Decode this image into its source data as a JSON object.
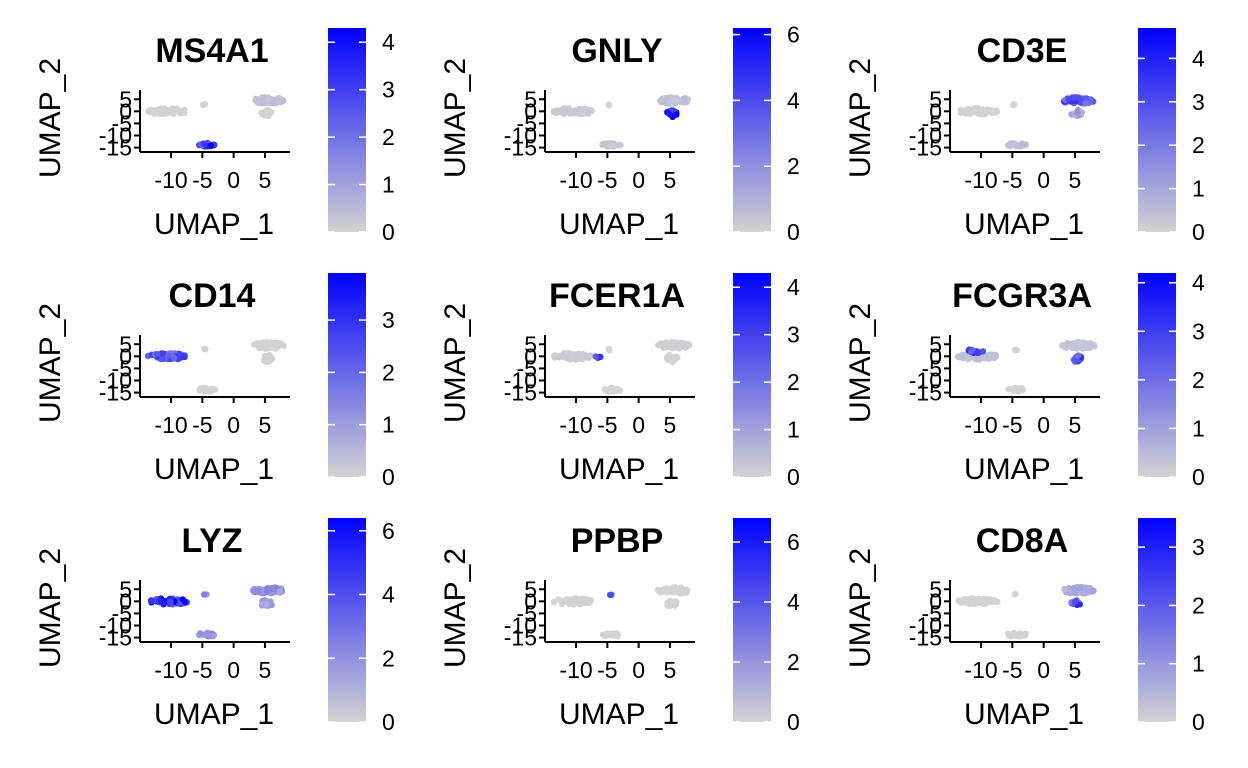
{
  "colors": {
    "low": "#D3D3D3",
    "high": "#0000FF",
    "axis": "#000000",
    "background": "#FFFFFF"
  },
  "chart_data": [
    {
      "type": "scatter",
      "title": "MS4A1",
      "xlabel": "UMAP_1",
      "ylabel": "UMAP_2",
      "xticks": [
        "-10",
        "-5",
        "0",
        "5"
      ],
      "yticks": [
        "5",
        "0",
        "-5",
        "-10",
        "-15"
      ],
      "xlim": [
        -14,
        9
      ],
      "ylim": [
        -16,
        8
      ],
      "colorbar": {
        "max": 4.3,
        "ticks": [
          "0",
          "1",
          "2",
          "3",
          "4"
        ]
      },
      "expression": {
        "pbmc_left": 0.0,
        "b_cells": 3.5,
        "megakaryocyte": 0.0,
        "t_nk": 0.4,
        "nk_sub": 0.0
      }
    },
    {
      "type": "scatter",
      "title": "GNLY",
      "xlabel": "UMAP_1",
      "ylabel": "UMAP_2",
      "xticks": [
        "-10",
        "-5",
        "0",
        "5"
      ],
      "yticks": [
        "5",
        "0",
        "-5",
        "-10",
        "-15"
      ],
      "xlim": [
        -14,
        9
      ],
      "ylim": [
        -16,
        8
      ],
      "colorbar": {
        "max": 6.2,
        "ticks": [
          "0",
          "2",
          "4",
          "6"
        ]
      },
      "expression": {
        "pbmc_left": 0.3,
        "b_cells": 0.4,
        "megakaryocyte": 0.0,
        "t_nk": 0.6,
        "nk_sub": 5.5
      }
    },
    {
      "type": "scatter",
      "title": "CD3E",
      "xlabel": "UMAP_1",
      "ylabel": "UMAP_2",
      "xticks": [
        "-10",
        "-5",
        "0",
        "5"
      ],
      "yticks": [
        "5",
        "0",
        "-5",
        "-10",
        "-15"
      ],
      "xlim": [
        -14,
        9
      ],
      "ylim": [
        -16,
        8
      ],
      "colorbar": {
        "max": 4.7,
        "ticks": [
          "0",
          "1",
          "2",
          "3",
          "4"
        ]
      },
      "expression": {
        "pbmc_left": 0.0,
        "b_cells": 0.5,
        "megakaryocyte": 0.0,
        "t_nk": 3.0,
        "nk_sub": 1.2
      }
    },
    {
      "type": "scatter",
      "title": "CD14",
      "xlabel": "UMAP_1",
      "ylabel": "UMAP_2",
      "xticks": [
        "-10",
        "-5",
        "0",
        "5"
      ],
      "yticks": [
        "5",
        "0",
        "-5",
        "-10",
        "-15"
      ],
      "xlim": [
        -14,
        9
      ],
      "ylim": [
        -16,
        8
      ],
      "colorbar": {
        "max": 3.9,
        "ticks": [
          "0",
          "1",
          "2",
          "3"
        ]
      },
      "expression": {
        "pbmc_left": 2.6,
        "b_cells": 0.0,
        "megakaryocyte": 0.0,
        "t_nk": 0.0,
        "nk_sub": 0.0
      }
    },
    {
      "type": "scatter",
      "title": "FCER1A",
      "xlabel": "UMAP_1",
      "ylabel": "UMAP_2",
      "xticks": [
        "-10",
        "-5",
        "0",
        "5"
      ],
      "yticks": [
        "5",
        "0",
        "-5",
        "-10",
        "-15"
      ],
      "xlim": [
        -14,
        9
      ],
      "ylim": [
        -16,
        8
      ],
      "colorbar": {
        "max": 4.3,
        "ticks": [
          "0",
          "1",
          "2",
          "3",
          "4"
        ]
      },
      "expression": {
        "pbmc_left": 0.2,
        "b_cells": 0.0,
        "megakaryocyte": 0.0,
        "t_nk": 0.1,
        "nk_sub": 0.0,
        "dc": 3.2
      }
    },
    {
      "type": "scatter",
      "title": "FCGR3A",
      "xlabel": "UMAP_1",
      "ylabel": "UMAP_2",
      "xticks": [
        "-10",
        "-5",
        "0",
        "5"
      ],
      "yticks": [
        "5",
        "0",
        "-5",
        "-10",
        "-15"
      ],
      "xlim": [
        -14,
        9
      ],
      "ylim": [
        -16,
        8
      ],
      "colorbar": {
        "max": 4.2,
        "ticks": [
          "0",
          "1",
          "2",
          "3",
          "4"
        ]
      },
      "expression": {
        "pbmc_left": 0.4,
        "b_cells": 0.0,
        "megakaryocyte": 0.0,
        "t_nk": 0.3,
        "nk_sub": 3.0,
        "fcgr3a_mono": 3.4
      }
    },
    {
      "type": "scatter",
      "title": "LYZ",
      "xlabel": "UMAP_1",
      "ylabel": "UMAP_2",
      "xticks": [
        "-10",
        "-5",
        "0",
        "5"
      ],
      "yticks": [
        "5",
        "0",
        "-5",
        "-10",
        "-15"
      ],
      "xlim": [
        -14,
        9
      ],
      "ylim": [
        -16,
        8
      ],
      "colorbar": {
        "max": 6.4,
        "ticks": [
          "0",
          "2",
          "4",
          "6"
        ]
      },
      "expression": {
        "pbmc_left": 5.5,
        "b_cells": 2.0,
        "megakaryocyte": 2.5,
        "t_nk": 2.2,
        "nk_sub": 1.8
      }
    },
    {
      "type": "scatter",
      "title": "PPBP",
      "xlabel": "UMAP_1",
      "ylabel": "UMAP_2",
      "xticks": [
        "-10",
        "-5",
        "0",
        "5"
      ],
      "yticks": [
        "5",
        "0",
        "-5",
        "-10",
        "-15"
      ],
      "xlim": [
        -14,
        9
      ],
      "ylim": [
        -16,
        8
      ],
      "colorbar": {
        "max": 6.8,
        "ticks": [
          "0",
          "2",
          "4",
          "6"
        ]
      },
      "expression": {
        "pbmc_left": 0.0,
        "b_cells": 0.0,
        "megakaryocyte": 6.5,
        "t_nk": 0.0,
        "nk_sub": 0.0
      }
    },
    {
      "type": "scatter",
      "title": "CD8A",
      "xlabel": "UMAP_1",
      "ylabel": "UMAP_2",
      "xticks": [
        "-10",
        "-5",
        "0",
        "5"
      ],
      "yticks": [
        "5",
        "0",
        "-5",
        "-10",
        "-15"
      ],
      "xlim": [
        -14,
        9
      ],
      "ylim": [
        -16,
        8
      ],
      "colorbar": {
        "max": 3.5,
        "ticks": [
          "0",
          "1",
          "2",
          "3"
        ]
      },
      "expression": {
        "pbmc_left": 0.0,
        "b_cells": 0.0,
        "megakaryocyte": 0.0,
        "t_nk": 0.7,
        "nk_sub": 2.4
      }
    }
  ]
}
